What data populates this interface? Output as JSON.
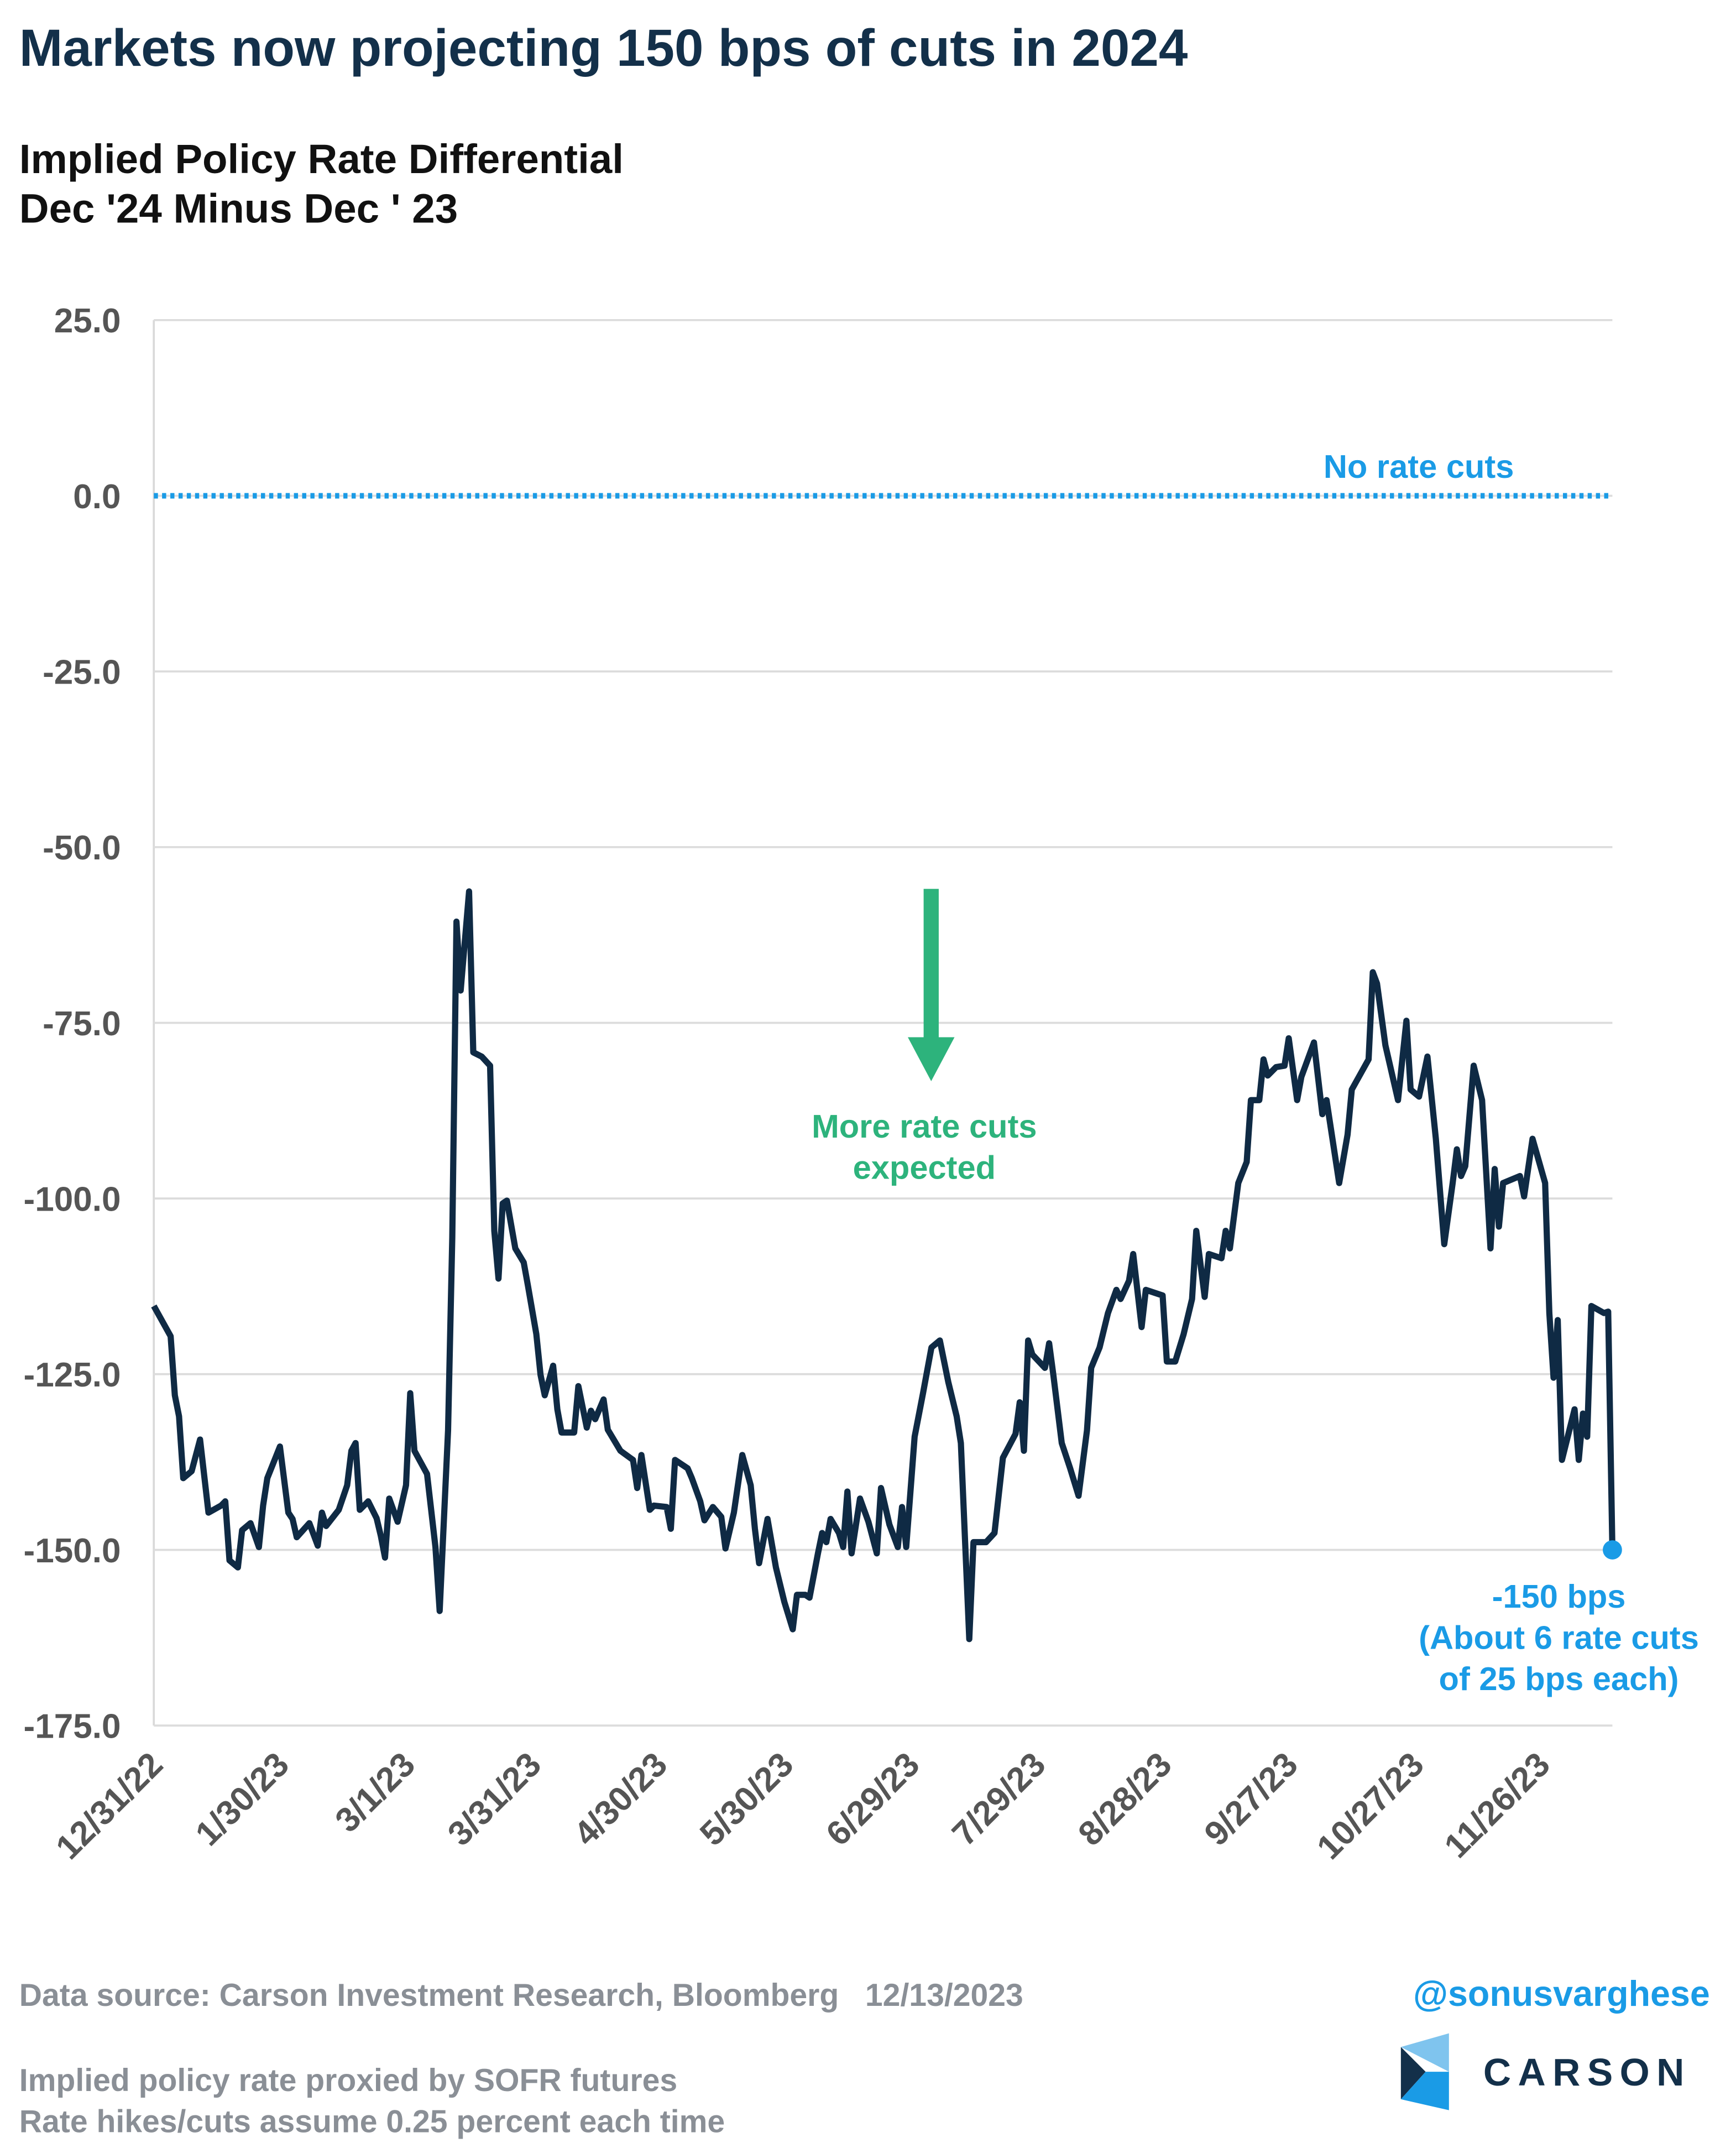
{
  "chart_data": {
    "type": "line",
    "title": "Markets now projecting 150 bps of cuts in 2024",
    "subtitle": [
      "Implied Policy Rate Differential",
      "Dec '24 Minus Dec ' 23"
    ],
    "x": [
      "12/31/22",
      "1/4/23",
      "1/5/23",
      "1/6/23",
      "1/7/23",
      "1/9/23",
      "1/11/23",
      "1/13/23",
      "1/16/23",
      "1/17/23",
      "1/18/23",
      "1/20/23",
      "1/21/23",
      "1/23/23",
      "1/25/23",
      "1/26/23",
      "1/27/23",
      "1/30/23",
      "2/1/23",
      "2/2/23",
      "2/3/23",
      "2/6/23",
      "2/8/23",
      "2/9/23",
      "2/10/23",
      "2/13/23",
      "2/15/23",
      "2/16/23",
      "2/17/23",
      "2/18/23",
      "2/20/23",
      "2/22/23",
      "2/23/23",
      "2/24/23",
      "2/25/23",
      "2/27/23",
      "3/1/23",
      "3/2/23",
      "3/3/23",
      "3/6/23",
      "3/8/23",
      "3/9/23",
      "3/11/23",
      "3/12/23",
      "3/13/23",
      "3/14/23",
      "3/16/23",
      "3/17/23",
      "3/19/23",
      "3/21/23",
      "3/22/23",
      "3/23/23",
      "3/24/23",
      "3/25/23",
      "3/27/23",
      "3/29/23",
      "3/30/23",
      "4/1/23",
      "4/2/23",
      "4/3/23",
      "4/5/23",
      "4/6/23",
      "4/7/23",
      "4/10/23",
      "4/11/23",
      "4/13/23",
      "4/14/23",
      "4/15/23",
      "4/17/23",
      "4/18/23",
      "4/21/23",
      "4/24/23",
      "4/25/23",
      "4/26/23",
      "4/28/23",
      "4/29/23",
      "5/2/23",
      "5/3/23",
      "5/4/23",
      "5/7/23",
      "5/8/23",
      "5/10/23",
      "5/11/23",
      "5/13/23",
      "5/15/23",
      "5/16/23",
      "5/18/23",
      "5/20/23",
      "5/22/23",
      "5/23/23",
      "5/24/23",
      "5/26/23",
      "5/28/23",
      "5/30/23",
      "6/1/23",
      "6/2/23",
      "6/4/23",
      "6/5/23",
      "6/7/23",
      "6/8/23",
      "6/9/23",
      "6/10/23",
      "6/12/23",
      "6/13/23",
      "6/14/23",
      "6/15/23",
      "6/17/23",
      "6/19/23",
      "6/21/23",
      "6/22/23",
      "6/24/23",
      "6/26/23",
      "6/27/23",
      "6/28/23",
      "6/30/23",
      "7/2/23",
      "7/4/23",
      "7/6/23",
      "7/8/23",
      "7/10/23",
      "7/11/23",
      "7/13/23",
      "7/14/23",
      "7/17/23",
      "7/19/23",
      "7/21/23",
      "7/24/23",
      "7/25/23",
      "7/26/23",
      "7/27/23",
      "7/28/23",
      "7/31/23",
      "8/1/23",
      "8/2/23",
      "8/4/23",
      "8/6/23",
      "8/8/23",
      "8/10/23",
      "8/11/23",
      "8/13/23",
      "8/15/23",
      "8/17/23",
      "8/18/23",
      "8/20/23",
      "8/21/23",
      "8/23/23",
      "8/24/23",
      "8/28/23",
      "8/29/23",
      "8/31/23",
      "9/2/23",
      "9/4/23",
      "9/5/23",
      "9/7/23",
      "9/8/23",
      "9/11/23",
      "9/12/23",
      "9/13/23",
      "9/15/23",
      "9/17/23",
      "9/18/23",
      "9/20/23",
      "9/21/23",
      "9/22/23",
      "9/24/23",
      "9/26/23",
      "9/27/23",
      "9/29/23",
      "9/30/23",
      "10/3/23",
      "10/5/23",
      "10/6/23",
      "10/9/23",
      "10/11/23",
      "10/12/23",
      "10/16/23",
      "10/17/23",
      "10/18/23",
      "10/20/23",
      "10/23/23",
      "10/25/23",
      "10/26/23",
      "10/28/23",
      "10/30/23",
      "11/1/23",
      "11/3/23",
      "11/5/23",
      "11/6/23",
      "11/7/23",
      "11/8/23",
      "11/10/23",
      "11/12/23",
      "11/14/23",
      "11/15/23",
      "11/16/23",
      "11/17/23",
      "11/21/23",
      "11/22/23",
      "11/24/23",
      "11/27/23",
      "11/28/23",
      "11/29/23",
      "11/30/23",
      "12/1/23",
      "12/4/23",
      "12/5/23",
      "12/6/23",
      "12/7/23",
      "12/8/23",
      "12/11/23",
      "12/12/23",
      "12/13/23"
    ],
    "series": [
      {
        "color": "#0f2a44",
        "values": [
          -115.3,
          -119.6,
          -128.0,
          -131.0,
          -139.8,
          -138.8,
          -134.3,
          -144.7,
          -143.7,
          -143.1,
          -151.5,
          -152.5,
          -147.2,
          -146.2,
          -149.6,
          -143.7,
          -139.8,
          -135.3,
          -144.7,
          -145.6,
          -148.2,
          -146.2,
          -149.4,
          -144.7,
          -146.6,
          -144.3,
          -140.8,
          -135.9,
          -134.8,
          -144.3,
          -143.1,
          -145.5,
          -148.0,
          -151.1,
          -142.7,
          -146.0,
          -140.8,
          -127.7,
          -135.9,
          -139.2,
          -149.6,
          -158.7,
          -133.0,
          -105.6,
          -60.6,
          -70.4,
          -56.3,
          -79.2,
          -79.8,
          -81.1,
          -104.6,
          -111.4,
          -100.7,
          -100.3,
          -107.1,
          -109.1,
          -112.4,
          -119.3,
          -125.1,
          -128.0,
          -123.8,
          -130.0,
          -133.3,
          -133.3,
          -126.7,
          -132.6,
          -130.2,
          -131.4,
          -128.6,
          -132.9,
          -135.9,
          -137.2,
          -141.2,
          -136.5,
          -144.3,
          -143.7,
          -143.9,
          -147.0,
          -137.2,
          -138.4,
          -139.8,
          -143.1,
          -145.8,
          -143.9,
          -145.3,
          -149.8,
          -144.7,
          -136.5,
          -140.8,
          -147.0,
          -151.9,
          -145.6,
          -152.5,
          -157.4,
          -161.3,
          -156.4,
          -156.4,
          -156.8,
          -150.5,
          -147.6,
          -148.9,
          -145.6,
          -147.6,
          -149.6,
          -141.7,
          -150.5,
          -142.7,
          -146.0,
          -150.5,
          -141.2,
          -146.4,
          -149.6,
          -143.9,
          -149.6,
          -133.9,
          -127.7,
          -121.2,
          -120.2,
          -126.1,
          -131.0,
          -134.8,
          -162.7,
          -148.9,
          -148.9,
          -147.6,
          -136.9,
          -133.5,
          -129.0,
          -135.9,
          -120.2,
          -122.2,
          -124.1,
          -120.6,
          -125.1,
          -134.8,
          -138.4,
          -142.3,
          -133.0,
          -124.1,
          -121.2,
          -116.3,
          -113.0,
          -114.3,
          -111.7,
          -107.9,
          -118.3,
          -113.0,
          -113.8,
          -123.2,
          -123.2,
          -119.3,
          -114.3,
          -104.6,
          -114.0,
          -107.9,
          -108.5,
          -104.6,
          -107.1,
          -97.8,
          -94.8,
          -86.0,
          -86.0,
          -80.2,
          -82.5,
          -81.3,
          -81.1,
          -77.2,
          -86.0,
          -82.7,
          -77.8,
          -88.0,
          -86.0,
          -97.8,
          -90.9,
          -84.5,
          -80.2,
          -67.8,
          -69.4,
          -78.2,
          -86.0,
          -74.7,
          -84.5,
          -85.5,
          -79.8,
          -91.5,
          -106.5,
          -97.8,
          -93.0,
          -96.8,
          -95.4,
          -81.1,
          -86.0,
          -107.1,
          -95.8,
          -104.0,
          -97.8,
          -96.8,
          -99.7,
          -91.5,
          -97.8,
          -116.3,
          -125.5,
          -117.3,
          -137.2,
          -130.0,
          -137.2,
          -130.6,
          -133.9,
          -115.3,
          -116.3,
          -116.1,
          -150.0
        ]
      }
    ],
    "xlim": [
      "12/31/22",
      "12/13/23"
    ],
    "xticks": [
      "12/31/22",
      "1/30/23",
      "3/1/23",
      "3/31/23",
      "4/30/23",
      "5/30/23",
      "6/29/23",
      "7/29/23",
      "8/28/23",
      "9/27/23",
      "10/27/23",
      "11/26/23"
    ],
    "ylim": [
      -175,
      25
    ],
    "yticks": [
      {
        "value": 25,
        "label": "25.0"
      },
      {
        "value": 0,
        "label": "0.0"
      },
      {
        "value": -25,
        "label": "-25.0"
      },
      {
        "value": -50,
        "label": "-50.0"
      },
      {
        "value": -75,
        "label": "-75.0"
      },
      {
        "value": -100,
        "label": "-100.0"
      },
      {
        "value": -125,
        "label": "-125.0"
      },
      {
        "value": -150,
        "label": "-150.0"
      },
      {
        "value": -175,
        "label": "-175.0"
      }
    ],
    "grid": true,
    "reference_line": {
      "value": 0,
      "label": "No rate cuts",
      "color": "#1a9be6"
    },
    "arrow_annotation": {
      "lines": [
        "More rate cuts",
        "expected"
      ],
      "color": "#2db37c"
    },
    "end_annotation": {
      "lines": [
        "-150 bps",
        "(About 6 rate cuts",
        "of 25 bps each)"
      ],
      "color": "#1a9be6"
    },
    "source": "Data source: Carson Investment Research, Bloomberg   12/13/2023",
    "handle": "@sonusvarghese",
    "notes": [
      "Implied policy rate proxied by SOFR futures",
      "Rate hikes/cuts assume 0.25 percent each time"
    ],
    "logo_text": "CARSON"
  }
}
